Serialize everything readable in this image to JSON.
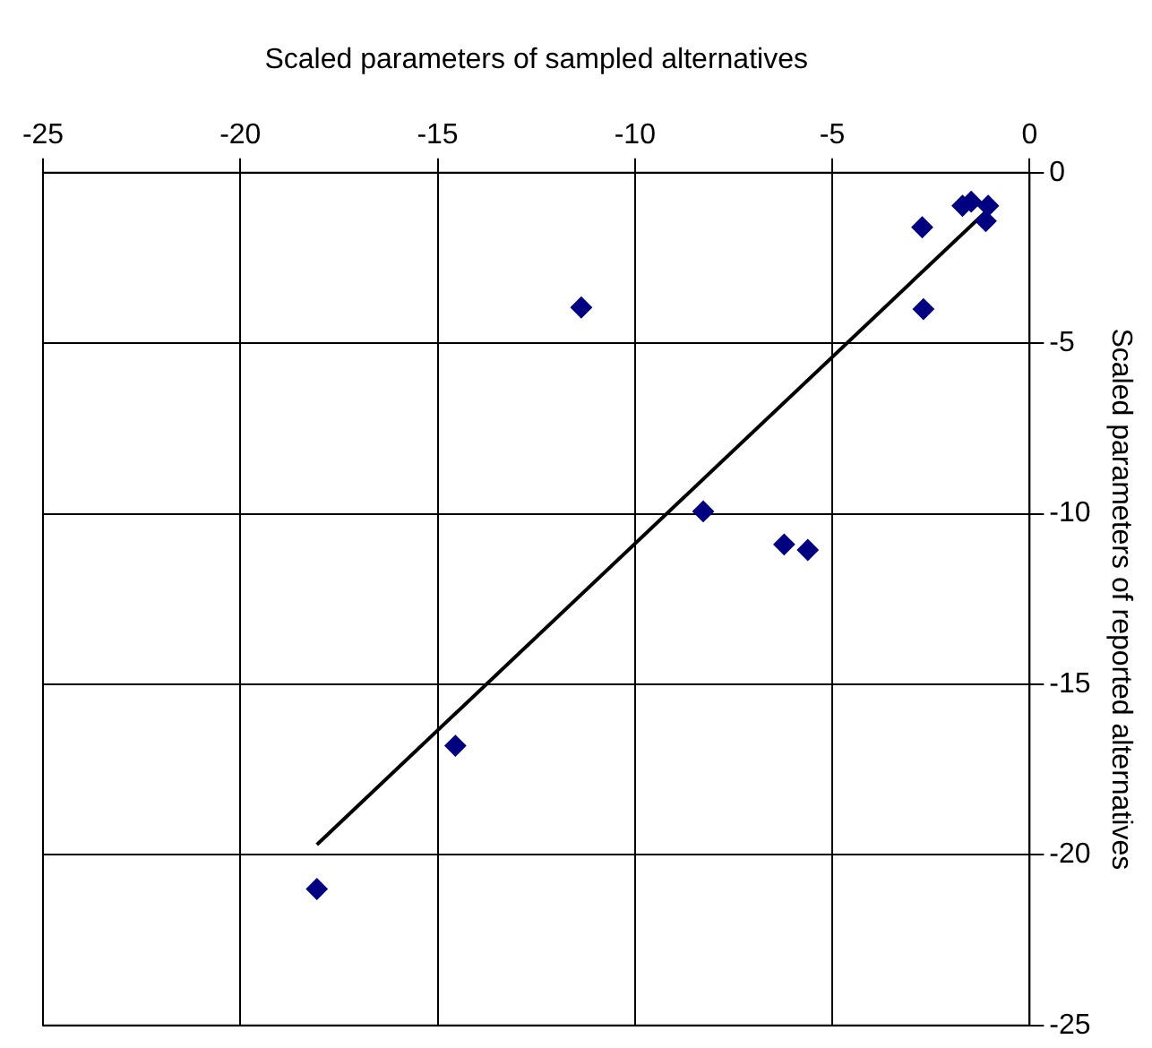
{
  "chart_data": {
    "type": "scatter",
    "xlabel": "Scaled parameters of sampled alternatives",
    "ylabel": "Scaled parameters of reported alternatives",
    "xlim": [
      -25,
      0
    ],
    "xticks": [
      -25,
      -20,
      -15,
      -10,
      -5,
      0
    ],
    "ylim": [
      -25,
      0
    ],
    "yticks": [
      -25,
      -20,
      -15,
      -10,
      -5,
      0
    ],
    "grid": true,
    "marker": "diamond",
    "series": [
      {
        "color": "#000080",
        "x": [
          -18.06,
          -14.55,
          -11.36,
          -8.27,
          -6.22,
          -5.62,
          -2.72,
          -2.69,
          -1.7,
          -1.48,
          -1.05,
          -1.11
        ],
        "values": [
          -21.0,
          -16.8,
          -3.95,
          -9.93,
          -10.9,
          -11.06,
          -1.6,
          -4.0,
          -0.97,
          -0.85,
          -0.97,
          -1.42
        ]
      },
      {
        "type": "line",
        "color": "#000000",
        "x": [
          -18.06,
          -1.05
        ],
        "values": [
          -19.7,
          -1.08
        ],
        "marker": "none"
      }
    ]
  }
}
